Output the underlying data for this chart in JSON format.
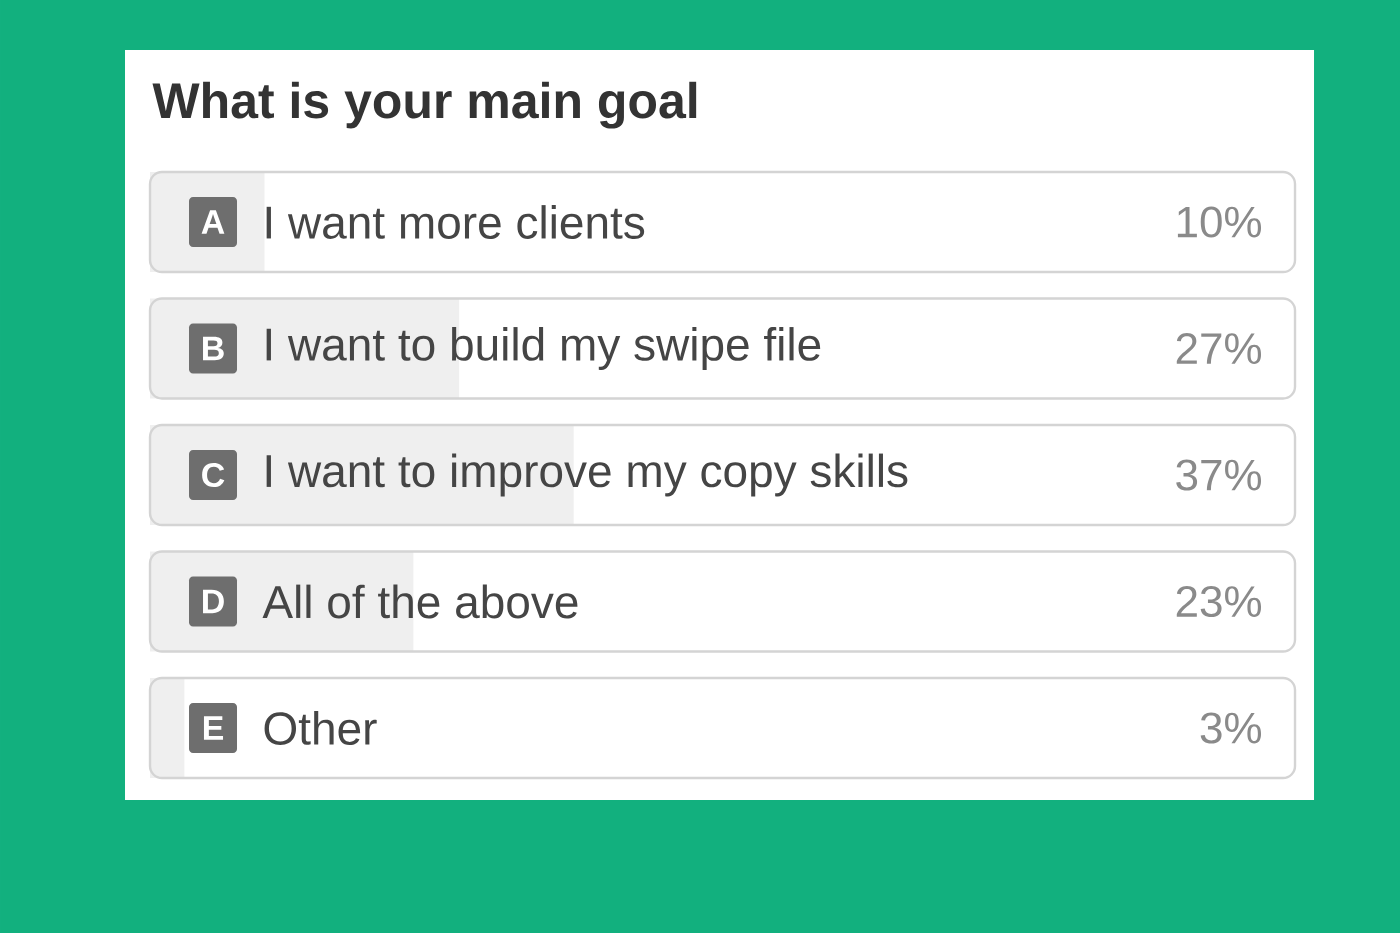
{
  "chart_data": {
    "type": "bar",
    "orientation": "horizontal",
    "title": "What is your main goal",
    "categories": [
      "I want more clients",
      "I want to build my swipe file",
      "I want to improve my copy skills",
      "All of the above",
      "Other"
    ],
    "values": [
      10,
      27,
      37,
      23,
      3
    ],
    "value_labels": [
      "10%",
      "27%",
      "37%",
      "23%",
      "3%"
    ],
    "color": "#efefef",
    "xlim": [
      0,
      100
    ],
    "tick_labels": "y",
    "annotations": [
      "A",
      "B",
      "C",
      "D",
      "E"
    ]
  }
}
